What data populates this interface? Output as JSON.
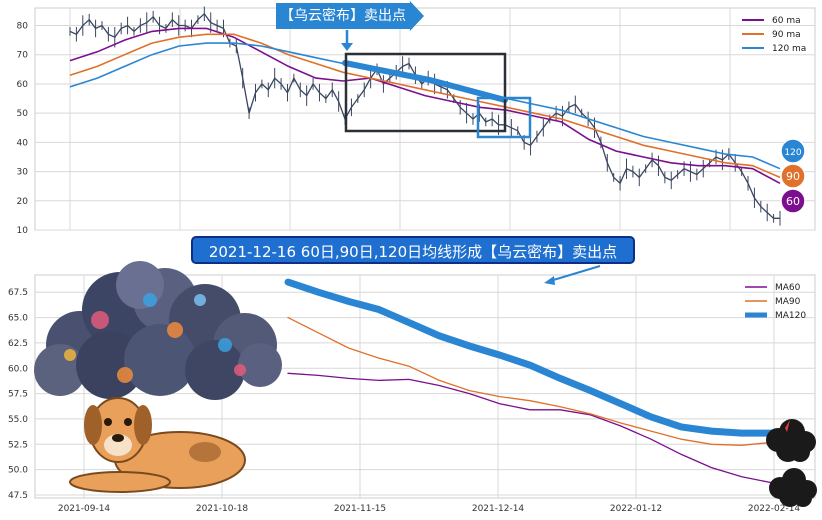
{
  "banner_text": "2021-12-16 60日,90日,120日均线形成【乌云密布】卖出点",
  "tag_text": "【乌云密布】卖出点",
  "colors": {
    "ma60": "#7b0f8f",
    "ma90": "#e0702a",
    "ma120": "#2a86d3",
    "price": "#3a4660",
    "box": "#2b2f36",
    "grid": "#d8d8d8"
  },
  "chart_data": [
    {
      "type": "line",
      "y_ticks": [
        10,
        20,
        30,
        40,
        50,
        60,
        70,
        80
      ],
      "ylim": [
        10,
        86
      ],
      "grid": true,
      "legend_position": "top-right",
      "legend": [
        "60 ma",
        "90 ma",
        "120 ma"
      ],
      "badges": [
        "120",
        "90",
        "60"
      ],
      "price_points": [
        78,
        77,
        80,
        82,
        79,
        80,
        77,
        76,
        79,
        80,
        78,
        80,
        81,
        83,
        80,
        79,
        82,
        80,
        80,
        79,
        82,
        84,
        81,
        80,
        79,
        74,
        73,
        62,
        50,
        57,
        60,
        58,
        62,
        60,
        57,
        62,
        58,
        56,
        60,
        57,
        55,
        58,
        54,
        48,
        52,
        55,
        58,
        62,
        65,
        60,
        62,
        64,
        66,
        67,
        63,
        60,
        62,
        60,
        59,
        58,
        55,
        52,
        50,
        48,
        50,
        47,
        48,
        46,
        46,
        45,
        44,
        40,
        39,
        42,
        45,
        48,
        50,
        49,
        52,
        53,
        50,
        48,
        45,
        40,
        33,
        28,
        26,
        31,
        30,
        28,
        31,
        34,
        32,
        28,
        27,
        29,
        31,
        30,
        29,
        31,
        33,
        35,
        34,
        36,
        33,
        30,
        26,
        21,
        18,
        16,
        14,
        14
      ],
      "series": [
        {
          "name": "60 ma",
          "values": [
            68,
            71,
            75,
            78,
            79,
            79,
            76,
            71,
            66,
            62,
            61,
            62,
            59,
            56,
            54,
            52,
            51,
            49,
            47,
            41,
            37,
            35,
            33,
            32,
            32,
            31,
            26
          ]
        },
        {
          "name": "90 ma",
          "values": [
            63,
            66,
            70,
            74,
            76,
            77,
            77,
            74,
            70,
            67,
            64,
            62,
            60,
            58,
            56,
            54,
            52,
            50,
            48,
            45,
            42,
            39,
            37,
            35,
            33,
            32,
            28
          ]
        },
        {
          "name": "120 ma",
          "values": [
            59,
            62,
            66,
            70,
            73,
            74,
            74,
            73,
            71,
            69,
            67,
            65,
            63,
            61,
            59,
            57,
            55,
            53,
            51,
            48,
            45,
            42,
            40,
            38,
            36,
            35,
            31
          ]
        }
      ]
    },
    {
      "type": "line",
      "x_ticks": [
        "2021-09-14",
        "2021-10-18",
        "2021-11-15",
        "2021-12-14",
        "2022-01-12",
        "2022-02-14"
      ],
      "y_ticks": [
        "47.5",
        "50.0",
        "52.5",
        "55.0",
        "57.5",
        "60.0",
        "62.5",
        "65.0",
        "67.5"
      ],
      "ylim": [
        47.2,
        69.2
      ],
      "grid": true,
      "legend_position": "top-right",
      "series": [
        {
          "name": "MA60",
          "values": [
            59.5,
            59.3,
            59.0,
            58.8,
            58.9,
            58.3,
            57.5,
            56.5,
            55.9,
            55.9,
            55.4,
            54.3,
            53.0,
            51.5,
            50.2,
            49.3,
            48.7
          ]
        },
        {
          "name": "MA90",
          "values": [
            65.0,
            63.5,
            62.0,
            61.0,
            60.2,
            58.8,
            57.8,
            57.2,
            56.8,
            56.2,
            55.5,
            54.6,
            53.8,
            53.0,
            52.5,
            52.4,
            52.7
          ]
        },
        {
          "name": "MA120",
          "values": [
            68.5,
            67.5,
            66.6,
            65.8,
            64.5,
            63.2,
            62.2,
            61.3,
            60.3,
            59.0,
            57.8,
            56.5,
            55.2,
            54.2,
            53.8,
            53.6,
            53.6
          ]
        }
      ]
    }
  ]
}
